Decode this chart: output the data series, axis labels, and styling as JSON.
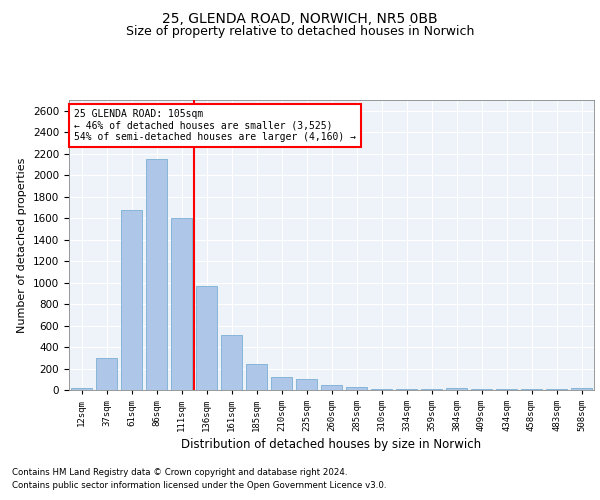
{
  "title1": "25, GLENDA ROAD, NORWICH, NR5 0BB",
  "title2": "Size of property relative to detached houses in Norwich",
  "xlabel": "Distribution of detached houses by size in Norwich",
  "ylabel": "Number of detached properties",
  "categories": [
    "12sqm",
    "37sqm",
    "61sqm",
    "86sqm",
    "111sqm",
    "136sqm",
    "161sqm",
    "185sqm",
    "210sqm",
    "235sqm",
    "260sqm",
    "285sqm",
    "310sqm",
    "334sqm",
    "359sqm",
    "384sqm",
    "409sqm",
    "434sqm",
    "458sqm",
    "483sqm",
    "508sqm"
  ],
  "values": [
    20,
    300,
    1675,
    2150,
    1600,
    970,
    510,
    245,
    120,
    100,
    45,
    30,
    10,
    5,
    5,
    20,
    5,
    5,
    5,
    5,
    20
  ],
  "bar_color": "#aec6e8",
  "bar_edge_color": "#7aafd4",
  "vline_x_idx": 4,
  "vline_color": "red",
  "annotation_title": "25 GLENDA ROAD: 105sqm",
  "annotation_line1": "← 46% of detached houses are smaller (3,525)",
  "annotation_line2": "54% of semi-detached houses are larger (4,160) →",
  "annotation_box_color": "white",
  "annotation_box_edge": "red",
  "footer1": "Contains HM Land Registry data © Crown copyright and database right 2024.",
  "footer2": "Contains public sector information licensed under the Open Government Licence v3.0.",
  "ylim": [
    0,
    2700
  ],
  "yticks": [
    0,
    200,
    400,
    600,
    800,
    1000,
    1200,
    1400,
    1600,
    1800,
    2000,
    2200,
    2400,
    2600
  ],
  "bg_color": "#eef2f9",
  "title1_fontsize": 10,
  "title2_fontsize": 9,
  "xlabel_fontsize": 8.5,
  "ylabel_fontsize": 8
}
